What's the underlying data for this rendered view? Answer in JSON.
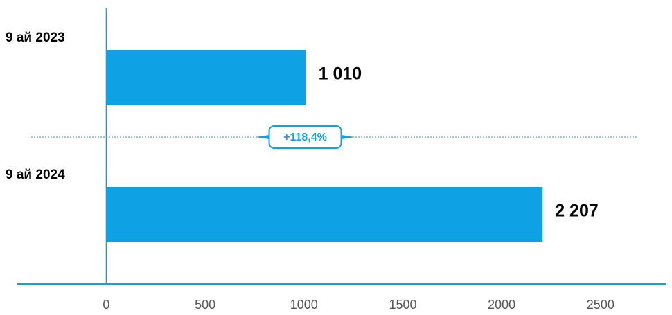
{
  "chart_data": {
    "type": "bar",
    "orientation": "horizontal",
    "categories": [
      "9 ай 2023",
      "9 ай 2024"
    ],
    "values": [
      1010,
      2207
    ],
    "value_labels": [
      "1 010",
      "2 207"
    ],
    "color": "#0ea2e5",
    "xlim": [
      -450,
      2830
    ],
    "xticks": [
      0,
      500,
      1000,
      1500,
      2000,
      2500
    ],
    "annotation": "+118,4%"
  }
}
